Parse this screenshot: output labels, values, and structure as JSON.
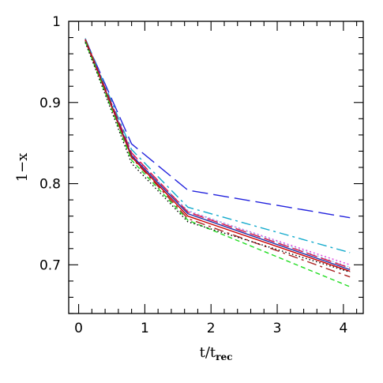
{
  "chart_data": {
    "type": "line",
    "xlabel": "t/t",
    "xlabel_subscript": "rec",
    "ylabel": "1−x",
    "xlim": [
      -0.15,
      4.3
    ],
    "ylim": [
      0.64,
      1.0
    ],
    "x_ticks": [
      0,
      1,
      2,
      3,
      4
    ],
    "y_ticks": [
      0.7,
      0.8,
      0.9,
      1
    ],
    "x_tick_labels": [
      "0",
      "1",
      "2",
      "3",
      "4"
    ],
    "y_tick_labels": [
      "0.7",
      "0.8",
      "0.9",
      "1"
    ],
    "grid": false,
    "legend": "none",
    "series": [
      {
        "color": "#2222dd",
        "dash": "20,7",
        "x": [
          0.1,
          0.8,
          1.65,
          4.1
        ],
        "y": [
          0.978,
          0.849,
          0.792,
          0.758
        ]
      },
      {
        "color": "#11aacc",
        "dash": "12,5,3,5",
        "x": [
          0.1,
          0.8,
          1.65,
          4.1
        ],
        "y": [
          0.979,
          0.842,
          0.771,
          0.715
        ]
      },
      {
        "color": "#dd44dd",
        "dash": "2,3",
        "x": [
          0.1,
          0.8,
          1.65,
          4.1
        ],
        "y": [
          0.977,
          0.836,
          0.766,
          0.7
        ]
      },
      {
        "color": "#88ccee",
        "dash": "2,3",
        "x": [
          0.1,
          0.8,
          1.65,
          4.1
        ],
        "y": [
          0.976,
          0.834,
          0.767,
          0.697
        ]
      },
      {
        "color": "#dd1144",
        "dash": "14,5",
        "x": [
          0.1,
          0.8,
          1.65,
          4.1
        ],
        "y": [
          0.978,
          0.838,
          0.765,
          0.696
        ]
      },
      {
        "color": "#2233aa",
        "dash": "",
        "x": [
          0.1,
          0.8,
          1.65,
          4.1
        ],
        "y": [
          0.977,
          0.835,
          0.763,
          0.694
        ]
      },
      {
        "color": "#cc0000",
        "dash": "",
        "x": [
          0.1,
          0.8,
          1.65,
          4.1
        ],
        "y": [
          0.977,
          0.833,
          0.76,
          0.692
        ]
      },
      {
        "color": "#aa2222",
        "dash": "12,5,3,5",
        "x": [
          0.1,
          0.8,
          1.65,
          4.1
        ],
        "y": [
          0.976,
          0.832,
          0.757,
          0.685
        ]
      },
      {
        "color": "#22dd22",
        "dash": "6,4",
        "x": [
          0.1,
          0.8,
          1.65,
          4.1
        ],
        "y": [
          0.975,
          0.829,
          0.755,
          0.673
        ]
      },
      {
        "color": "#000000",
        "dash": "1.5,3",
        "x": [
          0.1,
          0.8,
          1.65,
          4.1
        ],
        "y": [
          0.974,
          0.825,
          0.753,
          0.691
        ]
      }
    ]
  }
}
